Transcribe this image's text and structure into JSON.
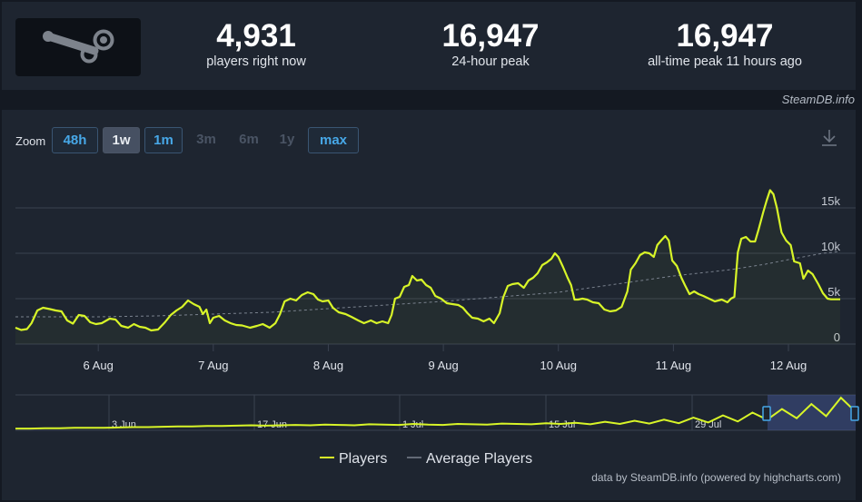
{
  "header": {
    "current_players": "4,931",
    "current_label": "players right now",
    "peak_24h": "16,947",
    "peak_24h_label": "24-hour peak",
    "alltime_peak": "16,947",
    "alltime_label": "all-time peak 11 hours ago",
    "credit": "SteamDB.info"
  },
  "zoom": {
    "label": "Zoom",
    "buttons": [
      {
        "label": "48h",
        "state": "enabled"
      },
      {
        "label": "1w",
        "state": "active"
      },
      {
        "label": "1m",
        "state": "enabled"
      },
      {
        "label": "3m",
        "state": "disabled"
      },
      {
        "label": "6m",
        "state": "disabled"
      },
      {
        "label": "1y",
        "state": "disabled"
      },
      {
        "label": "max",
        "state": "enabled"
      }
    ]
  },
  "footer_credit": "data by SteamDB.info (powered by highcharts.com)",
  "colors": {
    "players": "#d8f528",
    "average": "#7a828e",
    "background": "#1e2530",
    "accent": "#47a8e8"
  },
  "icons": {
    "logo": "steam-logo-icon",
    "download": "download-icon"
  },
  "chart_data": {
    "type": "line",
    "x_unit": "days since 5 Aug 00:00",
    "x_ticks": [
      {
        "x": 1,
        "label": "6 Aug"
      },
      {
        "x": 2,
        "label": "7 Aug"
      },
      {
        "x": 3,
        "label": "8 Aug"
      },
      {
        "x": 4,
        "label": "9 Aug"
      },
      {
        "x": 5,
        "label": "10 Aug"
      },
      {
        "x": 6,
        "label": "11 Aug"
      },
      {
        "x": 7,
        "label": "12 Aug"
      }
    ],
    "y_ticks": [
      {
        "y": 0,
        "label": "0"
      },
      {
        "y": 5000,
        "label": "5k"
      },
      {
        "y": 10000,
        "label": "10k"
      },
      {
        "y": 15000,
        "label": "15k"
      }
    ],
    "xlim": [
      0.28,
      7.45
    ],
    "ylim": [
      0,
      17000
    ],
    "grid": true,
    "legend": "bottom-center",
    "series": [
      {
        "name": "Players",
        "points": [
          [
            0.28,
            1800
          ],
          [
            0.33,
            1550
          ],
          [
            0.38,
            1650
          ],
          [
            0.42,
            2300
          ],
          [
            0.47,
            3700
          ],
          [
            0.52,
            4000
          ],
          [
            0.58,
            3850
          ],
          [
            0.63,
            3700
          ],
          [
            0.68,
            3600
          ],
          [
            0.73,
            2600
          ],
          [
            0.78,
            2250
          ],
          [
            0.83,
            3200
          ],
          [
            0.88,
            3100
          ],
          [
            0.93,
            2400
          ],
          [
            0.98,
            2200
          ],
          [
            1.03,
            2300
          ],
          [
            1.1,
            2800
          ],
          [
            1.15,
            2700
          ],
          [
            1.2,
            2000
          ],
          [
            1.26,
            1800
          ],
          [
            1.31,
            2200
          ],
          [
            1.36,
            1900
          ],
          [
            1.41,
            1800
          ],
          [
            1.46,
            1500
          ],
          [
            1.52,
            1600
          ],
          [
            1.58,
            2400
          ],
          [
            1.63,
            3200
          ],
          [
            1.68,
            3700
          ],
          [
            1.73,
            4100
          ],
          [
            1.78,
            4800
          ],
          [
            1.83,
            4400
          ],
          [
            1.88,
            4100
          ],
          [
            1.91,
            3300
          ],
          [
            1.94,
            3800
          ],
          [
            1.97,
            2300
          ],
          [
            2.0,
            2900
          ],
          [
            2.05,
            3100
          ],
          [
            2.1,
            2600
          ],
          [
            2.15,
            2300
          ],
          [
            2.2,
            2100
          ],
          [
            2.25,
            2050
          ],
          [
            2.32,
            1800
          ],
          [
            2.38,
            2000
          ],
          [
            2.43,
            2200
          ],
          [
            2.49,
            1800
          ],
          [
            2.54,
            2300
          ],
          [
            2.58,
            3300
          ],
          [
            2.62,
            4700
          ],
          [
            2.67,
            5000
          ],
          [
            2.72,
            4800
          ],
          [
            2.77,
            5400
          ],
          [
            2.82,
            5700
          ],
          [
            2.87,
            5500
          ],
          [
            2.91,
            4900
          ],
          [
            2.95,
            4700
          ],
          [
            3.0,
            4800
          ],
          [
            3.04,
            4000
          ],
          [
            3.09,
            3500
          ],
          [
            3.15,
            3300
          ],
          [
            3.2,
            3000
          ],
          [
            3.26,
            2600
          ],
          [
            3.31,
            2300
          ],
          [
            3.37,
            2600
          ],
          [
            3.42,
            2300
          ],
          [
            3.47,
            2500
          ],
          [
            3.52,
            2300
          ],
          [
            3.55,
            3200
          ],
          [
            3.58,
            5000
          ],
          [
            3.62,
            5200
          ],
          [
            3.66,
            6300
          ],
          [
            3.7,
            6500
          ],
          [
            3.73,
            7500
          ],
          [
            3.77,
            7000
          ],
          [
            3.81,
            7100
          ],
          [
            3.85,
            6500
          ],
          [
            3.89,
            6200
          ],
          [
            3.93,
            5300
          ],
          [
            3.98,
            5000
          ],
          [
            4.03,
            4500
          ],
          [
            4.08,
            4400
          ],
          [
            4.13,
            4300
          ],
          [
            4.17,
            4000
          ],
          [
            4.21,
            3400
          ],
          [
            4.25,
            2900
          ],
          [
            4.3,
            2800
          ],
          [
            4.35,
            2500
          ],
          [
            4.4,
            2800
          ],
          [
            4.44,
            2300
          ],
          [
            4.49,
            3400
          ],
          [
            4.52,
            5100
          ],
          [
            4.56,
            6400
          ],
          [
            4.6,
            6600
          ],
          [
            4.65,
            6700
          ],
          [
            4.7,
            6200
          ],
          [
            4.74,
            7000
          ],
          [
            4.78,
            7300
          ],
          [
            4.82,
            7800
          ],
          [
            4.86,
            8700
          ],
          [
            4.9,
            9000
          ],
          [
            4.94,
            9400
          ],
          [
            4.97,
            10000
          ],
          [
            5.0,
            9600
          ],
          [
            5.04,
            8500
          ],
          [
            5.08,
            7300
          ],
          [
            5.11,
            6500
          ],
          [
            5.14,
            4900
          ],
          [
            5.17,
            4900
          ],
          [
            5.21,
            5000
          ],
          [
            5.25,
            4900
          ],
          [
            5.3,
            4600
          ],
          [
            5.35,
            4500
          ],
          [
            5.4,
            3800
          ],
          [
            5.45,
            3600
          ],
          [
            5.5,
            3700
          ],
          [
            5.55,
            4100
          ],
          [
            5.6,
            5800
          ],
          [
            5.63,
            8200
          ],
          [
            5.67,
            8900
          ],
          [
            5.71,
            9800
          ],
          [
            5.75,
            10100
          ],
          [
            5.79,
            10000
          ],
          [
            5.83,
            9600
          ],
          [
            5.86,
            10900
          ],
          [
            5.9,
            11500
          ],
          [
            5.93,
            11900
          ],
          [
            5.96,
            11400
          ],
          [
            5.99,
            9200
          ],
          [
            6.03,
            8600
          ],
          [
            6.07,
            7300
          ],
          [
            6.1,
            6500
          ],
          [
            6.14,
            5500
          ],
          [
            6.18,
            5800
          ],
          [
            6.22,
            5500
          ],
          [
            6.26,
            5300
          ],
          [
            6.31,
            5000
          ],
          [
            6.36,
            4700
          ],
          [
            6.42,
            4900
          ],
          [
            6.47,
            4600
          ],
          [
            6.5,
            5000
          ],
          [
            6.53,
            5200
          ],
          [
            6.56,
            10100
          ],
          [
            6.59,
            11600
          ],
          [
            6.63,
            11800
          ],
          [
            6.67,
            11300
          ],
          [
            6.71,
            11300
          ],
          [
            6.74,
            12600
          ],
          [
            6.78,
            14500
          ],
          [
            6.81,
            15800
          ],
          [
            6.84,
            16947
          ],
          [
            6.87,
            16500
          ],
          [
            6.9,
            15000
          ],
          [
            6.94,
            12300
          ],
          [
            6.98,
            11400
          ],
          [
            7.02,
            10900
          ],
          [
            7.05,
            9100
          ],
          [
            7.1,
            8900
          ],
          [
            7.13,
            7200
          ],
          [
            7.17,
            8100
          ],
          [
            7.21,
            7700
          ],
          [
            7.26,
            6600
          ],
          [
            7.3,
            5600
          ],
          [
            7.34,
            5000
          ],
          [
            7.37,
            4931
          ],
          [
            7.45,
            4931
          ]
        ]
      },
      {
        "name": "Average Players",
        "points": [
          [
            0.28,
            3000
          ],
          [
            1.0,
            3000
          ],
          [
            1.5,
            3100
          ],
          [
            2.0,
            3300
          ],
          [
            2.5,
            3500
          ],
          [
            3.0,
            3900
          ],
          [
            3.5,
            4300
          ],
          [
            4.0,
            4700
          ],
          [
            4.5,
            5200
          ],
          [
            5.0,
            5700
          ],
          [
            5.5,
            6600
          ],
          [
            6.0,
            7500
          ],
          [
            6.5,
            8200
          ],
          [
            6.8,
            8800
          ],
          [
            7.0,
            9300
          ],
          [
            7.3,
            10000
          ],
          [
            7.45,
            10200
          ]
        ]
      }
    ],
    "navigator": {
      "x_ticks": [
        {
          "label": "3 Jun"
        },
        {
          "label": "17 Jun"
        },
        {
          "label": "1 Jul"
        },
        {
          "label": "15 Jul"
        },
        {
          "label": "29 Jul"
        }
      ],
      "values": [
        0.05,
        0.05,
        0.06,
        0.06,
        0.07,
        0.07,
        0.07,
        0.08,
        0.09,
        0.09,
        0.1,
        0.11,
        0.11,
        0.12,
        0.12,
        0.13,
        0.14,
        0.13,
        0.14,
        0.15,
        0.14,
        0.16,
        0.15,
        0.14,
        0.17,
        0.16,
        0.15,
        0.18,
        0.16,
        0.15,
        0.18,
        0.17,
        0.16,
        0.19,
        0.18,
        0.17,
        0.2,
        0.18,
        0.21,
        0.17,
        0.24,
        0.18,
        0.27,
        0.19,
        0.3,
        0.2,
        0.36,
        0.22,
        0.42,
        0.25,
        0.5,
        0.3,
        0.6,
        0.34,
        0.74,
        0.4,
        0.92,
        0.52
      ]
    }
  }
}
